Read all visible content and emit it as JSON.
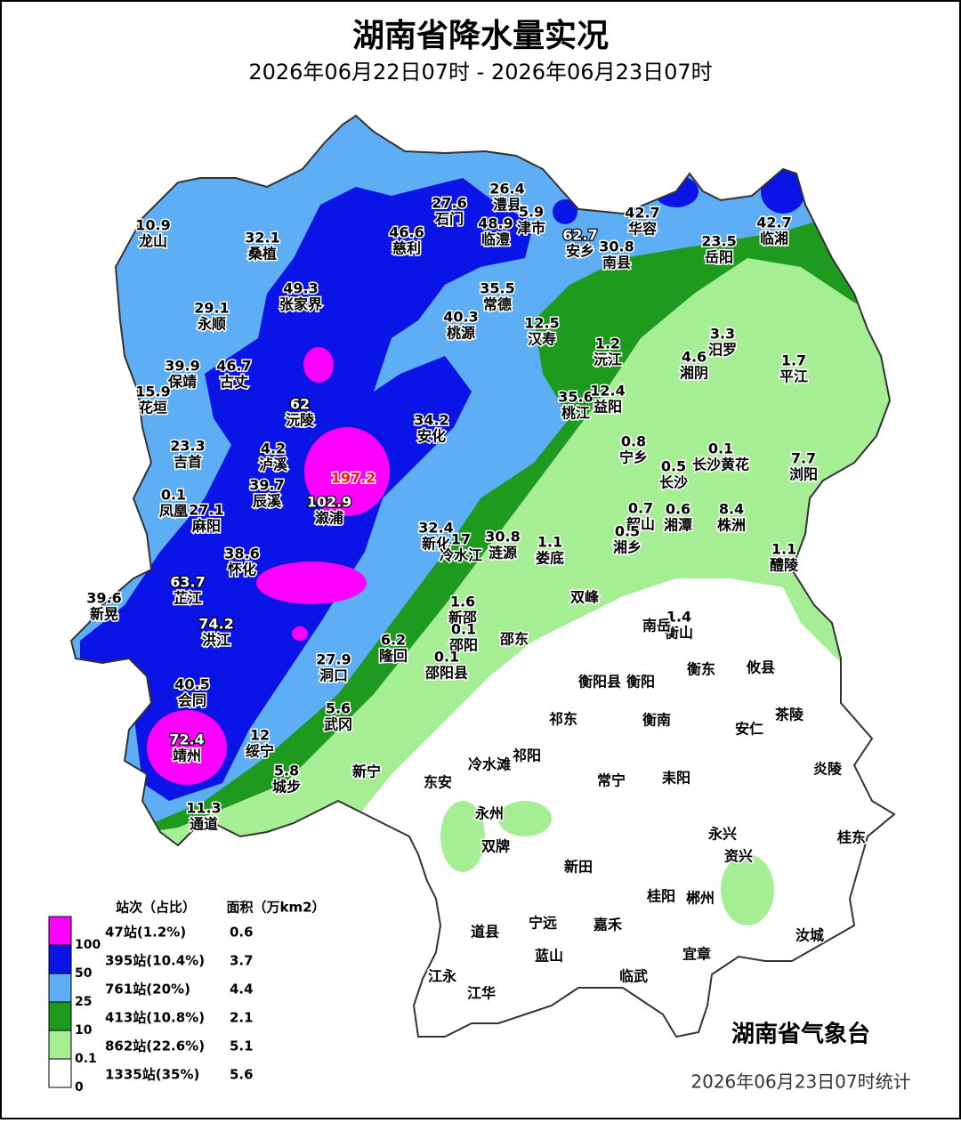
{
  "title": "湖南省降水量实况",
  "subtitle": "2026年06月22日07时 - 2026年06月23日07时",
  "stations": [
    {
      "name": "龙山",
      "value": 10.9
    },
    {
      "name": "桑植",
      "value": 32.1
    },
    {
      "name": "永顺",
      "value": 29.1
    },
    {
      "name": "张家界",
      "value": 49.3
    },
    {
      "name": "慈利",
      "value": 46.6
    },
    {
      "name": "石门",
      "value": 27.6
    },
    {
      "name": "澧县",
      "value": 26.4
    },
    {
      "name": "临澧",
      "value": 48.9
    },
    {
      "name": "津市",
      "value": 5.9
    },
    {
      "name": "安乡",
      "value": 62.7
    },
    {
      "name": "华容",
      "value": 42.7
    },
    {
      "name": "南县",
      "value": 30.8
    },
    {
      "name": "岳阳",
      "value": 23.5
    },
    {
      "name": "临湘",
      "value": 42.7
    },
    {
      "name": "常德",
      "value": 35.5
    },
    {
      "name": "桃源",
      "value": 40.3
    },
    {
      "name": "汉寿",
      "value": 12.5
    },
    {
      "name": "沅江",
      "value": 1.2
    },
    {
      "name": "汨罗",
      "value": 3.3
    },
    {
      "name": "湘阴",
      "value": 4.6
    },
    {
      "name": "平江",
      "value": 1.7
    },
    {
      "name": "保靖",
      "value": 39.9
    },
    {
      "name": "古丈",
      "value": 46.7
    },
    {
      "name": "花垣",
      "value": 15.9
    },
    {
      "name": "沅陵",
      "value": 62
    },
    {
      "name": "桃江",
      "value": 35.6
    },
    {
      "name": "益阳",
      "value": 12.4
    },
    {
      "name": "安化",
      "value": 34.2
    },
    {
      "name": "吉首",
      "value": 23.3
    },
    {
      "name": "泸溪",
      "value": 4.2
    },
    {
      "name": "宁乡",
      "value": 0.8
    },
    {
      "name": "长沙黄花",
      "value": 0.1
    },
    {
      "name": "浏阳",
      "value": 7.7
    },
    {
      "name": "长沙",
      "value": 0.5
    },
    {
      "value": 197.2
    },
    {
      "name": "溆浦",
      "value": 102.9
    },
    {
      "name": "辰溪",
      "value": 39.7
    },
    {
      "name": "凤凰",
      "value": 0.1
    },
    {
      "name": "麻阳",
      "value": 27.1
    },
    {
      "name": "韶山",
      "value": 0.7
    },
    {
      "name": "湘潭",
      "value": 0.6
    },
    {
      "name": "株洲",
      "value": 8.4
    },
    {
      "name": "湘乡",
      "value": 0.5
    },
    {
      "name": "新化",
      "value": 32.4
    },
    {
      "name": "冷水江",
      "value": 17
    },
    {
      "name": "涟源",
      "value": 30.8
    },
    {
      "name": "娄底",
      "value": 1.1
    },
    {
      "name": "醴陵",
      "value": 1.1
    },
    {
      "name": "怀化",
      "value": 38.6
    },
    {
      "name": "芷江",
      "value": 63.7
    },
    {
      "name": "新晃",
      "value": 39.6
    },
    {
      "name": "双峰"
    },
    {
      "name": "新邵",
      "value": 1.6
    },
    {
      "name": "衡山",
      "value": 1.4
    },
    {
      "name": "南岳"
    },
    {
      "name": "洪江",
      "value": 74.2
    },
    {
      "name": "邵阳",
      "value": 0.1
    },
    {
      "name": "邵东"
    },
    {
      "name": "隆回",
      "value": 6.2
    },
    {
      "name": "邵阳县",
      "value": 0.1
    },
    {
      "name": "洞口",
      "value": 27.9
    },
    {
      "name": "衡阳县"
    },
    {
      "name": "衡阳"
    },
    {
      "name": "衡东"
    },
    {
      "name": "攸县"
    },
    {
      "name": "会同",
      "value": 40.5
    },
    {
      "name": "武冈",
      "value": 5.6
    },
    {
      "name": "祁东"
    },
    {
      "name": "衡南"
    },
    {
      "name": "茶陵"
    },
    {
      "name": "安仁"
    },
    {
      "name": "靖州",
      "value": 72.4
    },
    {
      "name": "绥宁",
      "value": 12
    },
    {
      "name": "冷水滩"
    },
    {
      "name": "祁阳"
    },
    {
      "name": "炎陵"
    },
    {
      "name": "城步",
      "value": 5.8
    },
    {
      "name": "新宁"
    },
    {
      "name": "东安"
    },
    {
      "name": "常宁"
    },
    {
      "name": "耒阳"
    },
    {
      "name": "通道",
      "value": 11.3
    },
    {
      "name": "永州"
    },
    {
      "name": "双牌"
    },
    {
      "name": "永兴"
    },
    {
      "name": "资兴"
    },
    {
      "name": "桂东"
    },
    {
      "name": "新田"
    },
    {
      "name": "桂阳"
    },
    {
      "name": "郴州"
    },
    {
      "name": "道县"
    },
    {
      "name": "宁远"
    },
    {
      "name": "嘉禾"
    },
    {
      "name": "蓝山"
    },
    {
      "name": "汝城"
    },
    {
      "name": "宜章"
    },
    {
      "name": "江永"
    },
    {
      "name": "临武"
    },
    {
      "name": "江华"
    }
  ],
  "legend": {
    "count_header": "站次（占比）",
    "area_header": "面积（万km2）",
    "rows": [
      {
        "count": "47站(1.2%)",
        "area": 0.6,
        "color": "#ff00ff"
      },
      {
        "count": "395站(10.4%)",
        "area": 3.7,
        "color": "#0a14e6"
      },
      {
        "count": "761站(20%)",
        "area": 4.4,
        "color": "#5eaef5"
      },
      {
        "count": "413站(10.8%)",
        "area": 2.1,
        "color": "#1e9a1e"
      },
      {
        "count": "862站(22.6%)",
        "area": 5.1,
        "color": "#a6ee94"
      },
      {
        "count": "1335站(35%)",
        "area": 5.6,
        "color": "#ffffff"
      }
    ],
    "thresholds": [
      100,
      50,
      25,
      10,
      0.1,
      0
    ]
  },
  "agency": "湖南省气象台",
  "footer": "2026年06月23日07时统计"
}
